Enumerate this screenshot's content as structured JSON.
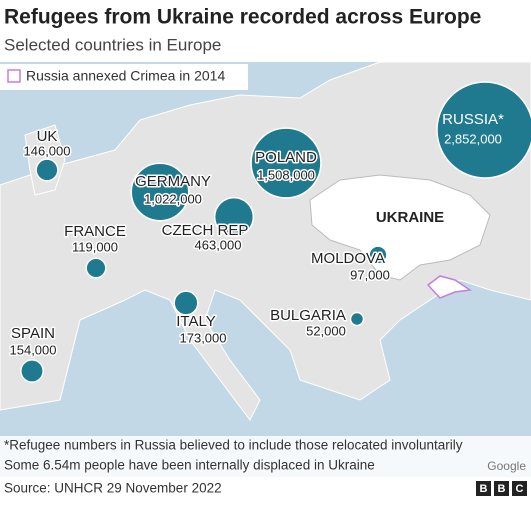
{
  "header": {
    "title": "Refugees from Ukraine recorded across Europe",
    "subtitle": "Selected countries in Europe"
  },
  "legend": {
    "label": "Russia annexed Crimea in 2014"
  },
  "map": {
    "region_label": "UKRAINE",
    "attribution": "Google",
    "points": [
      {
        "name": "UK",
        "value": 146000,
        "value_label": "146,000"
      },
      {
        "name": "GERMANY",
        "value": 1022000,
        "value_label": "1,022,000"
      },
      {
        "name": "POLAND",
        "value": 1508000,
        "value_label": "1,508,000"
      },
      {
        "name": "CZECH REP",
        "value": 463000,
        "value_label": "463,000"
      },
      {
        "name": "FRANCE",
        "value": 119000,
        "value_label": "119,000"
      },
      {
        "name": "SPAIN",
        "value": 154000,
        "value_label": "154,000"
      },
      {
        "name": "ITALY",
        "value": 173000,
        "value_label": "173,000"
      },
      {
        "name": "BULGARIA",
        "value": 52000,
        "value_label": "52,000"
      },
      {
        "name": "MOLDOVA",
        "value": 97000,
        "value_label": "97,000"
      },
      {
        "name": "RUSSIA*",
        "value": 2852000,
        "value_label": "2,852,000"
      }
    ]
  },
  "footer": {
    "notes": [
      "*Refugee numbers in Russia believed to include those relocated involuntarily",
      "Some 6.54m people have been internally displaced in Ukraine"
    ],
    "source": "Source: UNHCR 29 November 2022"
  }
}
